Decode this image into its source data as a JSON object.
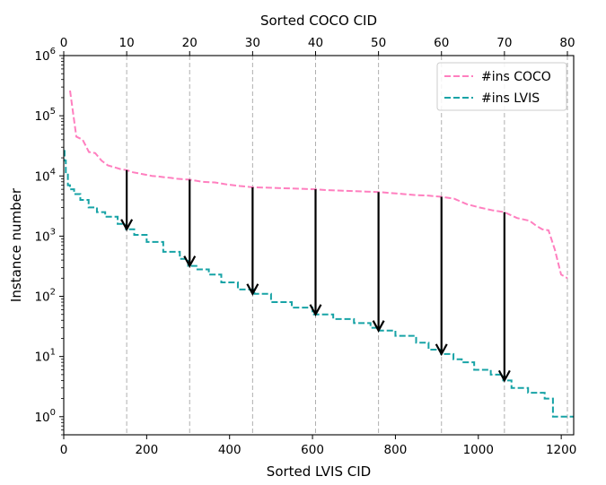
{
  "chart_data": {
    "type": "line",
    "x_scale": "linear",
    "y_scale": "log",
    "xlabel_bottom": "Sorted LVIS CID",
    "xlabel_top": "Sorted COCO CID",
    "ylabel": "Instance number",
    "xlim_bottom": [
      0,
      1230
    ],
    "xlim_top": [
      0,
      81
    ],
    "ylim": [
      0.5,
      1000000
    ],
    "x_ticks_bottom": [
      0,
      200,
      400,
      600,
      800,
      1000,
      1200
    ],
    "x_ticks_top": [
      0,
      10,
      20,
      30,
      40,
      50,
      60,
      70,
      80
    ],
    "y_ticks": [
      {
        "value": 1,
        "base": "10",
        "exp": "0"
      },
      {
        "value": 10,
        "base": "10",
        "exp": "1"
      },
      {
        "value": 100,
        "base": "10",
        "exp": "2"
      },
      {
        "value": 1000,
        "base": "10",
        "exp": "3"
      },
      {
        "value": 10000,
        "base": "10",
        "exp": "4"
      },
      {
        "value": 100000,
        "base": "10",
        "exp": "5"
      },
      {
        "value": 1000000,
        "base": "10",
        "exp": "6"
      }
    ],
    "vlines_top_x": [
      10,
      20,
      30,
      40,
      50,
      60,
      70,
      80
    ],
    "legend_position": "top-right",
    "series": [
      {
        "name": "#ins COCO",
        "axis": "top",
        "color": "#ff7fbf",
        "style": "dashed",
        "x": [
          1,
          2,
          3,
          4,
          5,
          6,
          7,
          8,
          9,
          10,
          11,
          12,
          13,
          14,
          15,
          16,
          17,
          18,
          19,
          20,
          22,
          24,
          26,
          28,
          30,
          32,
          34,
          36,
          38,
          40,
          42,
          44,
          46,
          48,
          50,
          52,
          54,
          56,
          58,
          60,
          62,
          64,
          66,
          68,
          70,
          72,
          74,
          75,
          76,
          77,
          78,
          79,
          80
        ],
        "values": [
          262000,
          45000,
          40000,
          25000,
          24000,
          18000,
          15000,
          14000,
          13000,
          12500,
          11500,
          11000,
          10500,
          10000,
          9800,
          9500,
          9300,
          9000,
          8800,
          8700,
          8000,
          7800,
          7200,
          6800,
          6500,
          6400,
          6300,
          6200,
          6100,
          6000,
          5800,
          5700,
          5600,
          5500,
          5400,
          5200,
          5000,
          4800,
          4700,
          4500,
          4200,
          3400,
          3000,
          2700,
          2500,
          2000,
          1800,
          1500,
          1300,
          1250,
          600,
          230,
          200
        ]
      },
      {
        "name": "#ins LVIS",
        "axis": "bottom",
        "color": "#17a3a6",
        "style": "dashed",
        "x": [
          0,
          2,
          5,
          10,
          15,
          25,
          40,
          60,
          80,
          100,
          130,
          150,
          170,
          200,
          240,
          280,
          300,
          320,
          350,
          380,
          420,
          460,
          500,
          550,
          600,
          650,
          700,
          740,
          760,
          800,
          850,
          880,
          910,
          940,
          960,
          990,
          1030,
          1060,
          1080,
          1120,
          1160,
          1180,
          1210,
          1230
        ],
        "values": [
          26000,
          18000,
          11000,
          7000,
          6000,
          5000,
          4000,
          3000,
          2500,
          2100,
          1600,
          1300,
          1050,
          800,
          550,
          420,
          320,
          280,
          230,
          170,
          130,
          110,
          80,
          65,
          50,
          42,
          36,
          30,
          27,
          22,
          17,
          13,
          11,
          9,
          8,
          6,
          5,
          4,
          3,
          2.5,
          2,
          1,
          1,
          1
        ]
      }
    ],
    "arrows": [
      {
        "x_top": 10,
        "from": 12500,
        "to": 1300
      },
      {
        "x_top": 20,
        "from": 8700,
        "to": 320
      },
      {
        "x_top": 30,
        "from": 6500,
        "to": 110
      },
      {
        "x_top": 40,
        "from": 6000,
        "to": 50
      },
      {
        "x_top": 50,
        "from": 5400,
        "to": 27
      },
      {
        "x_top": 60,
        "from": 4500,
        "to": 11
      },
      {
        "x_top": 70,
        "from": 2500,
        "to": 4
      }
    ]
  }
}
